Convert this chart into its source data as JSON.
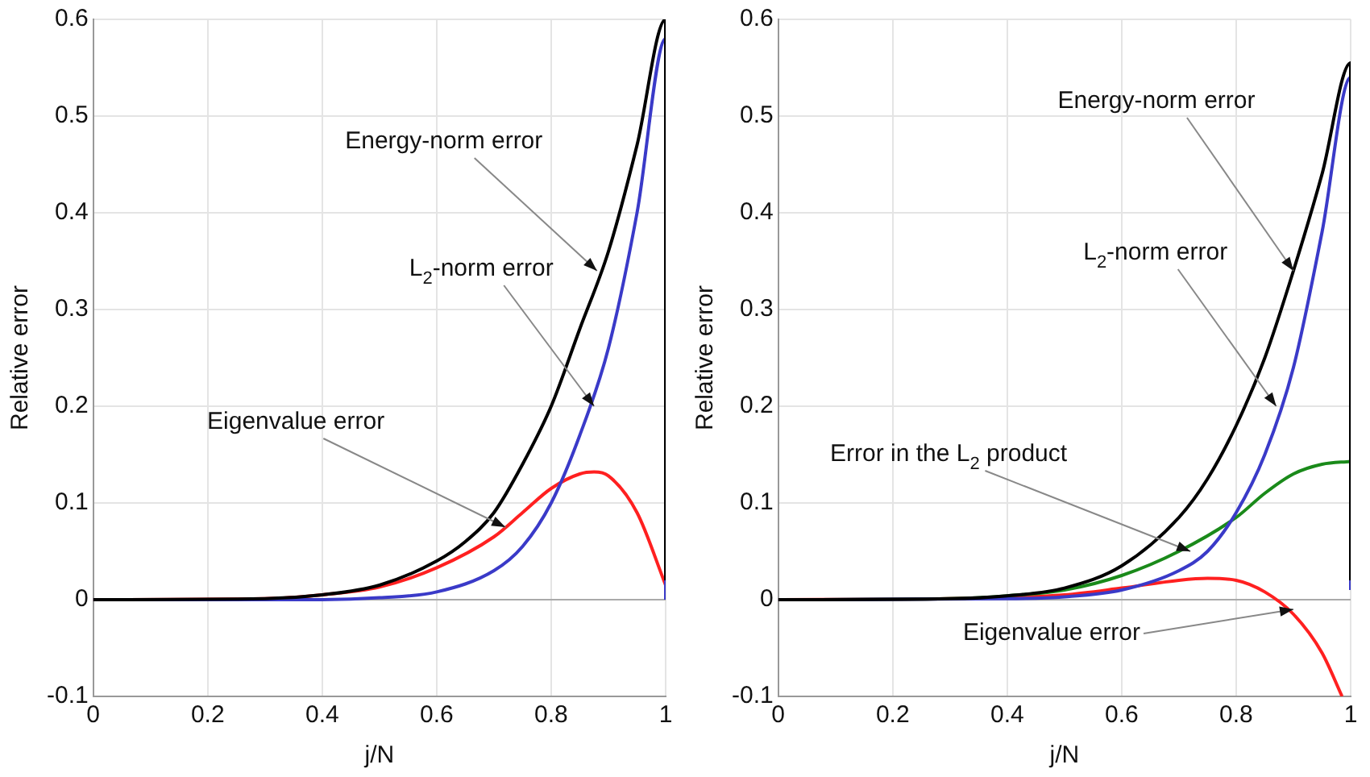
{
  "chart_data": [
    {
      "type": "line",
      "xlabel": "j/N",
      "ylabel": "Relative error",
      "xlim": [
        0,
        1
      ],
      "ylim": [
        -0.1,
        0.6
      ],
      "xticks": [
        0,
        0.2,
        0.4,
        0.6,
        0.8,
        1
      ],
      "yticks": [
        -0.1,
        0,
        0.1,
        0.2,
        0.3,
        0.4,
        0.5,
        0.6
      ],
      "grid": true,
      "legend": false,
      "marker": "none",
      "line_style": "solid",
      "series": [
        {
          "color": "#000000",
          "x": [
            0,
            0.3,
            0.4,
            0.5,
            0.6,
            0.65,
            0.7,
            0.75,
            0.8,
            0.85,
            0.9,
            0.95,
            1,
            1
          ],
          "values": [
            0,
            0.001,
            0.005,
            0.015,
            0.04,
            0.06,
            0.09,
            0.14,
            0.2,
            0.28,
            0.36,
            0.47,
            0.6,
            0.02
          ]
        },
        {
          "color": "#3a3ac8",
          "x": [
            0,
            0.4,
            0.5,
            0.6,
            0.7,
            0.75,
            0.8,
            0.85,
            0.9,
            0.95,
            1,
            1
          ],
          "values": [
            0,
            0,
            0.002,
            0.008,
            0.03,
            0.055,
            0.1,
            0.17,
            0.26,
            0.4,
            0.58,
            0
          ]
        },
        {
          "color": "#ff2020",
          "x": [
            0,
            0.3,
            0.4,
            0.5,
            0.6,
            0.7,
            0.75,
            0.8,
            0.85,
            0.875,
            0.9,
            0.95,
            1
          ],
          "values": [
            0,
            0.001,
            0.005,
            0.013,
            0.033,
            0.065,
            0.09,
            0.115,
            0.13,
            0.132,
            0.128,
            0.09,
            0.015
          ]
        }
      ],
      "annotations": [
        {
          "text": "Energy-norm error",
          "x": 0.88,
          "y": 0.34
        },
        {
          "text": "L$_{2}$-norm error",
          "x": 0.875,
          "y": 0.2
        },
        {
          "text": "Eigenvalue error",
          "x": 0.72,
          "y": 0.075
        }
      ]
    },
    {
      "type": "line",
      "xlabel": "j/N",
      "ylabel": "Relative error",
      "xlim": [
        0,
        1
      ],
      "ylim": [
        -0.1,
        0.6
      ],
      "xticks": [
        0,
        0.2,
        0.4,
        0.6,
        0.8,
        1
      ],
      "yticks": [
        -0.1,
        0,
        0.1,
        0.2,
        0.3,
        0.4,
        0.5,
        0.6
      ],
      "grid": true,
      "legend": false,
      "marker": "none",
      "line_style": "solid",
      "series": [
        {
          "color": "#000000",
          "x": [
            0,
            0.3,
            0.4,
            0.5,
            0.6,
            0.7,
            0.75,
            0.8,
            0.85,
            0.9,
            0.95,
            1,
            1
          ],
          "values": [
            0,
            0.001,
            0.004,
            0.012,
            0.035,
            0.085,
            0.125,
            0.18,
            0.25,
            0.34,
            0.44,
            0.555,
            0.02
          ]
        },
        {
          "color": "#3a3ac8",
          "x": [
            0,
            0.4,
            0.5,
            0.6,
            0.7,
            0.75,
            0.8,
            0.85,
            0.9,
            0.95,
            1,
            1
          ],
          "values": [
            0,
            0.001,
            0.003,
            0.01,
            0.03,
            0.05,
            0.09,
            0.15,
            0.24,
            0.38,
            0.54,
            0.01
          ]
        },
        {
          "color": "#1a8a1a",
          "x": [
            0,
            0.3,
            0.4,
            0.5,
            0.6,
            0.7,
            0.8,
            0.85,
            0.9,
            0.95,
            1
          ],
          "values": [
            0,
            0.001,
            0.004,
            0.01,
            0.025,
            0.05,
            0.085,
            0.11,
            0.13,
            0.14,
            0.143
          ]
        },
        {
          "color": "#ff2020",
          "x": [
            0,
            0.3,
            0.5,
            0.6,
            0.7,
            0.75,
            0.8,
            0.85,
            0.9,
            0.95,
            0.985
          ],
          "values": [
            0,
            0.001,
            0.005,
            0.012,
            0.02,
            0.022,
            0.02,
            0.008,
            -0.015,
            -0.055,
            -0.1
          ]
        }
      ],
      "annotations": [
        {
          "text": "Energy-norm error",
          "x": 0.9,
          "y": 0.34
        },
        {
          "text": "L$_{2}$-norm error",
          "x": 0.87,
          "y": 0.2
        },
        {
          "text": "Error in the L$_{2}$ product",
          "x": 0.72,
          "y": 0.05
        },
        {
          "text": "Eigenvalue error",
          "x": 0.9,
          "y": -0.01
        }
      ]
    }
  ]
}
